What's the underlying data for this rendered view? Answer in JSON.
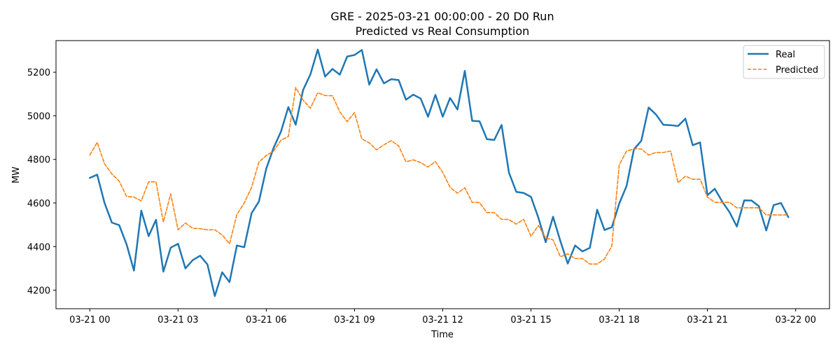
{
  "chart_data": {
    "type": "line",
    "title": "GRE - 2025-03-21 00:00:00 - 20 D0 Run",
    "subtitle": "Predicted vs Real Consumption",
    "xlabel": "Time",
    "ylabel": "MW",
    "x_unit": "hours since 2025-03-21 00:00",
    "xlim": [
      -1.15,
      25.15
    ],
    "ylim": [
      4115,
      5345
    ],
    "x_ticks": [
      0,
      3,
      6,
      9,
      12,
      15,
      18,
      21,
      24
    ],
    "x_tick_labels": [
      "03-21 00",
      "03-21 03",
      "03-21 06",
      "03-21 09",
      "03-21 12",
      "03-21 15",
      "03-21 18",
      "03-21 21",
      "03-22 00"
    ],
    "y_ticks": [
      4200,
      4400,
      4600,
      4800,
      5000,
      5200
    ],
    "legend_position": "top-right",
    "grid": false,
    "x": [
      0,
      0.25,
      0.5,
      0.75,
      1,
      1.25,
      1.5,
      1.75,
      2,
      2.25,
      2.5,
      2.75,
      3,
      3.25,
      3.5,
      3.75,
      4,
      4.25,
      4.5,
      4.75,
      5,
      5.25,
      5.5,
      5.75,
      6,
      6.25,
      6.5,
      6.75,
      7,
      7.25,
      7.5,
      7.75,
      8,
      8.25,
      8.5,
      8.75,
      9,
      9.25,
      9.5,
      9.75,
      10,
      10.25,
      10.5,
      10.75,
      11,
      11.25,
      11.5,
      11.75,
      12,
      12.25,
      12.5,
      12.75,
      13,
      13.25,
      13.5,
      13.75,
      14,
      14.25,
      14.5,
      14.75,
      15,
      15.25,
      15.5,
      15.75,
      16,
      16.25,
      16.5,
      16.75,
      17,
      17.25,
      17.5,
      17.75,
      18,
      18.25,
      18.5,
      18.75,
      19,
      19.25,
      19.5,
      19.75,
      20,
      20.25,
      20.5,
      20.75,
      21,
      21.25,
      21.5,
      21.75,
      22,
      22.25,
      22.5,
      22.75,
      23,
      23.25,
      23.5,
      23.75
    ],
    "series": [
      {
        "name": "Real",
        "color": "#1f77b4",
        "style": "solid",
        "values": [
          4715,
          4730,
          4600,
          4510,
          4498,
          4410,
          4290,
          4565,
          4448,
          4523,
          4285,
          4395,
          4413,
          4300,
          4338,
          4358,
          4318,
          4173,
          4282,
          4237,
          4405,
          4397,
          4553,
          4607,
          4758,
          4853,
          4928,
          5040,
          4959,
          5118,
          5190,
          5304,
          5180,
          5215,
          5189,
          5272,
          5279,
          5302,
          5143,
          5213,
          5149,
          5168,
          5164,
          5074,
          5097,
          5079,
          4996,
          5096,
          4996,
          5082,
          5029,
          5206,
          4977,
          4975,
          4893,
          4889,
          4958,
          4740,
          4651,
          4646,
          4628,
          4533,
          4420,
          4537,
          4425,
          4322,
          4405,
          4378,
          4394,
          4569,
          4476,
          4489,
          4597,
          4678,
          4846,
          4885,
          5038,
          5006,
          4959,
          4957,
          4953,
          4987,
          4865,
          4878,
          4636,
          4665,
          4607,
          4558,
          4492,
          4612,
          4611,
          4585,
          4474,
          4590,
          4600,
          4535
        ]
      },
      {
        "name": "Predicted",
        "color": "#ff7f0e",
        "style": "dashed",
        "values": [
          4820,
          4878,
          4780,
          4733,
          4700,
          4630,
          4627,
          4610,
          4697,
          4697,
          4513,
          4642,
          4477,
          4508,
          4484,
          4482,
          4477,
          4477,
          4453,
          4413,
          4547,
          4600,
          4672,
          4788,
          4818,
          4838,
          4888,
          4905,
          5130,
          5072,
          5035,
          5106,
          5093,
          5092,
          5018,
          4973,
          5015,
          4894,
          4876,
          4844,
          4867,
          4886,
          4862,
          4789,
          4798,
          4785,
          4765,
          4790,
          4740,
          4672,
          4645,
          4670,
          4603,
          4602,
          4556,
          4556,
          4525,
          4524,
          4503,
          4525,
          4447,
          4497,
          4440,
          4431,
          4353,
          4367,
          4345,
          4345,
          4320,
          4320,
          4343,
          4403,
          4775,
          4838,
          4848,
          4848,
          4820,
          4832,
          4832,
          4838,
          4693,
          4723,
          4709,
          4709,
          4627,
          4603,
          4603,
          4603,
          4578,
          4578,
          4578,
          4578,
          4545,
          4545,
          4545,
          4545
        ]
      }
    ]
  }
}
